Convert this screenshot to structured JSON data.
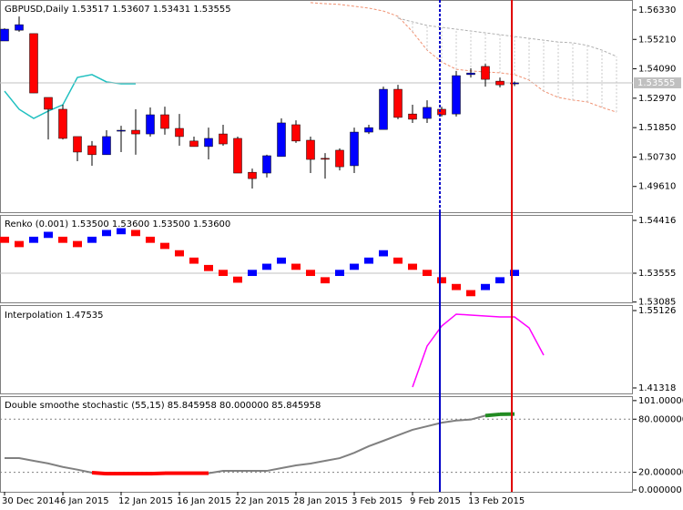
{
  "chart_data": [
    {
      "type": "candlestick",
      "title": "GBPUSD,Daily  1.53517 1.53607 1.53431 1.53555",
      "categories": [
        "30 Dec 2014",
        null,
        null,
        null,
        "6 Jan 2015",
        null,
        null,
        null,
        "12 Jan 2015",
        null,
        null,
        null,
        "16 Jan 2015",
        null,
        null,
        null,
        "22 Jan 2015",
        null,
        null,
        null,
        "28 Jan 2015",
        null,
        null,
        null,
        "3 Feb 2015",
        null,
        null,
        null,
        "9 Feb 2015",
        null,
        null,
        null,
        "13 Feb 2015",
        null,
        null,
        null,
        null,
        null,
        null,
        null,
        null,
        null,
        null
      ],
      "open": [
        1.5515,
        1.5556,
        1.5543,
        1.53,
        1.5255,
        1.5151,
        1.5116,
        1.5082,
        1.5172,
        1.5175,
        1.5161,
        1.5234,
        1.5182,
        1.5134,
        1.5113,
        1.5161,
        1.5144,
        1.5015,
        1.5012,
        1.5075,
        1.5196,
        1.5137,
        1.5068,
        1.5099,
        1.504,
        1.5168,
        1.5178,
        1.5331,
        1.5237,
        1.522,
        1.5255,
        1.5237,
        1.5387,
        1.5418,
        1.5362,
        1.53517,
        null,
        null,
        null,
        null,
        null,
        null,
        null
      ],
      "high": [
        1.5563,
        1.5608,
        1.5543,
        1.53,
        1.5272,
        1.5151,
        1.5134,
        1.5175,
        1.5192,
        1.5255,
        1.5262,
        1.5265,
        1.5237,
        1.5151,
        1.5185,
        1.5196,
        1.5151,
        1.5029,
        1.5082,
        1.522,
        1.5213,
        1.5151,
        1.5088,
        1.5106,
        1.5185,
        1.5196,
        1.5341,
        1.5348,
        1.5272,
        1.5289,
        1.5265,
        1.5401,
        1.5411,
        1.5428,
        1.5376,
        1.53607,
        null,
        null,
        null,
        null,
        null,
        null,
        null
      ],
      "low": [
        1.5515,
        1.555,
        1.5317,
        1.514,
        1.514,
        1.5057,
        1.504,
        1.5082,
        1.5092,
        1.5082,
        1.5151,
        1.5158,
        1.5116,
        1.5113,
        1.5064,
        1.5116,
        1.5012,
        1.4953,
        1.4995,
        1.5075,
        1.5127,
        1.5012,
        1.4991,
        1.5022,
        1.5012,
        1.5161,
        1.5178,
        1.5217,
        1.5203,
        1.5203,
        1.5227,
        1.5227,
        1.5376,
        1.5341,
        1.5338,
        1.53431,
        null,
        null,
        null,
        null,
        null,
        null,
        null
      ],
      "close": [
        1.556,
        1.5577,
        1.5317,
        1.5255,
        1.5144,
        1.5092,
        1.5082,
        1.5151,
        1.5175,
        1.5161,
        1.5234,
        1.5182,
        1.5151,
        1.5113,
        1.5144,
        1.5123,
        1.5012,
        1.4991,
        1.5078,
        1.5203,
        1.5134,
        1.5064,
        1.5065,
        1.5036,
        1.5168,
        1.5185,
        1.5331,
        1.5224,
        1.5217,
        1.5262,
        1.5234,
        1.5383,
        1.5393,
        1.5369,
        1.5348,
        1.53555,
        null,
        null,
        null,
        null,
        null,
        null,
        null
      ],
      "up_color": "#0000ff",
      "down_color": "#ff0000",
      "series": [
        {
          "color": "#20c0c0",
          "values": [
            1.5324,
            1.5255,
            1.522,
            1.5248,
            1.5272,
            1.5376,
            1.5387,
            1.5359,
            1.5352,
            1.5352,
            null,
            null,
            null,
            null,
            null,
            null,
            null,
            null,
            null,
            null,
            null,
            null,
            null,
            null,
            null,
            null,
            null,
            null,
            null,
            null,
            null,
            null,
            null,
            null,
            null,
            null,
            null,
            null,
            null,
            null,
            null,
            null,
            null
          ]
        },
        {
          "color": "#f09070",
          "dashed": true,
          "values": [
            null,
            null,
            null,
            null,
            null,
            null,
            null,
            null,
            null,
            null,
            null,
            null,
            null,
            null,
            null,
            null,
            null,
            null,
            null,
            null,
            null,
            1.5661,
            1.5657,
            1.5654,
            1.5647,
            1.564,
            1.5629,
            1.5609,
            1.555,
            1.548,
            1.5435,
            1.5407,
            1.5401,
            1.5397,
            1.5394,
            1.5387,
            1.5366,
            1.5324,
            1.53,
            1.529,
            1.5283,
            1.5262,
            1.5244
          ]
        },
        {
          "color": "#b0b0b0",
          "dashed": true,
          "values": [
            null,
            null,
            null,
            null,
            null,
            null,
            null,
            null,
            null,
            null,
            null,
            null,
            null,
            null,
            null,
            null,
            null,
            null,
            null,
            null,
            null,
            null,
            null,
            null,
            null,
            null,
            null,
            1.5602,
            1.5588,
            1.5574,
            1.5567,
            1.556,
            1.5553,
            1.5546,
            1.5539,
            1.5532,
            1.5525,
            1.5518,
            1.5511,
            1.5508,
            1.5498,
            1.548,
            1.5456
          ]
        }
      ],
      "price_line": 1.53555,
      "ylim": [
        1.4863,
        1.5671
      ],
      "yticks": [
        {
          "value": 1.5633,
          "label": "1.56330"
        },
        {
          "value": 1.5521,
          "label": "1.55210"
        },
        {
          "value": 1.5409,
          "label": "1.54090"
        },
        {
          "value": 1.5297,
          "label": "1.52970"
        },
        {
          "value": 1.5185,
          "label": "1.51850"
        },
        {
          "value": 1.5073,
          "label": "1.50730"
        },
        {
          "value": 1.4961,
          "label": "1.49610"
        }
      ]
    },
    {
      "type": "renko",
      "title": "Renko (0.001) 1.53500 1.53600 1.53500 1.53600",
      "brick_size": 0.001,
      "values": [
        1.541,
        1.5403,
        1.541,
        1.5418,
        1.541,
        1.5403,
        1.541,
        1.5421,
        1.5424,
        1.5421,
        1.541,
        1.54,
        1.5388,
        1.5376,
        1.5364,
        1.5356,
        1.5345,
        1.5356,
        1.5366,
        1.5376,
        1.5366,
        1.5356,
        1.5344,
        1.5356,
        1.5366,
        1.5376,
        1.5388,
        1.5376,
        1.5366,
        1.5356,
        1.5344,
        1.5333,
        1.5323,
        1.5333,
        1.5344,
        1.5356
      ],
      "colors": [
        "#ff0000",
        "#ff0000",
        "#0000ff",
        "#0000ff",
        "#ff0000",
        "#ff0000",
        "#0000ff",
        "#0000ff",
        "#0000ff",
        "#ff0000",
        "#ff0000",
        "#ff0000",
        "#ff0000",
        "#ff0000",
        "#ff0000",
        "#ff0000",
        "#ff0000",
        "#0000ff",
        "#0000ff",
        "#0000ff",
        "#ff0000",
        "#ff0000",
        "#ff0000",
        "#0000ff",
        "#0000ff",
        "#0000ff",
        "#0000ff",
        "#ff0000",
        "#ff0000",
        "#ff0000",
        "#ff0000",
        "#ff0000",
        "#ff0000",
        "#0000ff",
        "#0000ff",
        "#0000ff"
      ],
      "price_line": 1.53555,
      "ylim": [
        1.5308,
        1.54505
      ],
      "yticks": [
        {
          "value": 1.54416,
          "label": "1.54416"
        },
        {
          "value": 1.53555,
          "label": "1.53555"
        },
        {
          "value": 1.53085,
          "label": "1.53085"
        }
      ]
    },
    {
      "type": "line",
      "title": "Interpolation 1.47535",
      "color": "#ff00ff",
      "values": [
        null,
        null,
        null,
        null,
        null,
        null,
        null,
        null,
        null,
        null,
        null,
        null,
        null,
        null,
        null,
        null,
        null,
        null,
        null,
        null,
        null,
        null,
        null,
        null,
        null,
        null,
        null,
        null,
        1.4148,
        1.4879,
        1.5236,
        1.5448,
        1.5431,
        1.5415,
        1.5399,
        1.5399,
        1.5204,
        1.4717,
        null,
        null,
        null,
        null,
        null
      ],
      "ylim": [
        1.4034,
        1.561
      ],
      "yticks": [
        {
          "value": 1.55126,
          "label": "1.55126"
        },
        {
          "value": 1.41318,
          "label": "1.41318"
        }
      ]
    },
    {
      "type": "stochastic",
      "title": "Double smoothe stochastic (55,15) 85.845958 80.000000 85.845958",
      "color": "#808080",
      "low_color": "#ff0000",
      "high_color": "#228b22",
      "values": [
        36,
        36,
        33,
        30,
        26,
        23,
        19.6,
        18.5,
        18.5,
        18.5,
        18.5,
        19,
        19,
        19,
        19,
        21.6,
        21.6,
        21.6,
        21.6,
        24.7,
        27.8,
        29.9,
        33,
        36,
        42,
        49.5,
        55.6,
        61.8,
        68,
        72,
        76,
        78.5,
        79.6,
        84,
        85.5,
        85.845958
      ],
      "levels": [
        80,
        20
      ],
      "ylim": [
        -2,
        106
      ],
      "yticks": [
        {
          "value": 101,
          "label": "101.000000"
        },
        {
          "value": 80,
          "label": "80.000000"
        },
        {
          "value": 20,
          "label": "20.000000"
        },
        {
          "value": 0,
          "label": "0.000000"
        }
      ]
    }
  ]
}
